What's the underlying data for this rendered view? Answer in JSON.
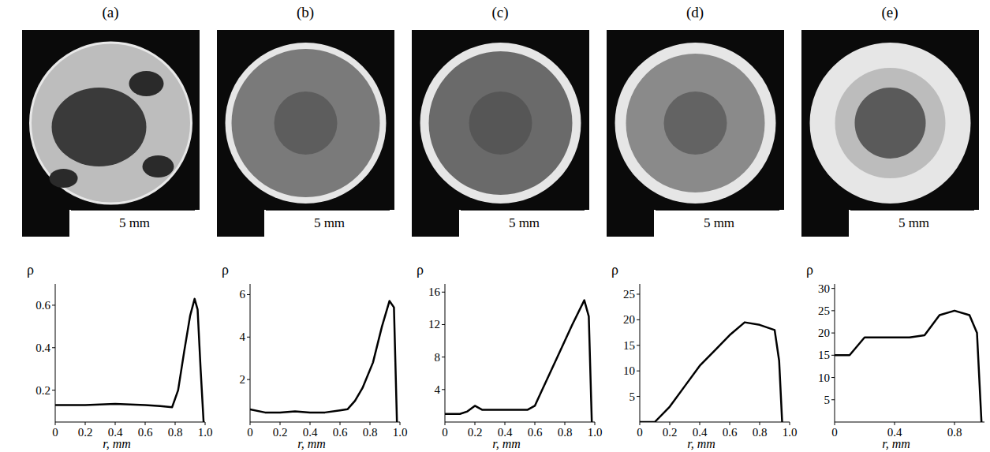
{
  "chart_data": [
    {
      "type": "line",
      "title": "(a)",
      "annotations": [
        "5 mm"
      ],
      "x_label": "r, mm",
      "y_label": "ρ",
      "color": "#000000",
      "x": [
        0,
        0.2,
        0.4,
        0.6,
        0.7,
        0.78,
        0.82,
        0.86,
        0.9,
        0.93,
        0.95,
        0.97,
        0.99
      ],
      "values": [
        0.13,
        0.13,
        0.135,
        0.13,
        0.125,
        0.12,
        0.2,
        0.38,
        0.55,
        0.63,
        0.58,
        0.3,
        0.05
      ],
      "xlim": [
        0,
        1
      ],
      "ylim": [
        0.05,
        0.7
      ],
      "xticks": [
        0,
        0.2,
        0.4,
        0.6,
        0.8,
        {
          "value": 1,
          "label": "1.0"
        }
      ],
      "yticks": [
        0.2,
        0.4,
        0.6
      ]
    },
    {
      "type": "line",
      "title": "(b)",
      "annotations": [
        "5 mm"
      ],
      "x_label": "r, mm",
      "y_label": "ρ",
      "color": "#000000",
      "x": [
        0,
        0.1,
        0.2,
        0.3,
        0.4,
        0.5,
        0.6,
        0.65,
        0.7,
        0.75,
        0.82,
        0.88,
        0.93,
        0.96,
        0.98
      ],
      "values": [
        0.6,
        0.45,
        0.45,
        0.5,
        0.45,
        0.45,
        0.55,
        0.6,
        1.0,
        1.6,
        2.8,
        4.5,
        5.7,
        5.4,
        0
      ],
      "xlim": [
        0,
        1
      ],
      "ylim": [
        0,
        6.5
      ],
      "xticks": [
        0,
        0.2,
        0.4,
        0.6,
        0.8,
        {
          "value": 1,
          "label": "1.0"
        }
      ],
      "yticks": [
        2,
        4,
        6
      ]
    },
    {
      "type": "line",
      "title": "(c)",
      "annotations": [
        "5 mm"
      ],
      "x_label": "r, mm",
      "y_label": "ρ",
      "color": "#000000",
      "x": [
        0,
        0.1,
        0.15,
        0.2,
        0.25,
        0.4,
        0.55,
        0.6,
        0.65,
        0.75,
        0.85,
        0.93,
        0.96,
        0.98
      ],
      "values": [
        1.0,
        1.0,
        1.3,
        2.0,
        1.5,
        1.5,
        1.5,
        2.0,
        4.0,
        8.0,
        12.0,
        15.0,
        13.0,
        0
      ],
      "xlim": [
        0,
        1
      ],
      "ylim": [
        0,
        17
      ],
      "xticks": [
        0,
        0.2,
        0.4,
        0.6,
        0.8,
        {
          "value": 1,
          "label": "1.0"
        }
      ],
      "yticks": [
        4,
        8,
        12,
        16
      ]
    },
    {
      "type": "line",
      "title": "(d)",
      "annotations": [
        "5 mm"
      ],
      "x_label": "r, mm",
      "y_label": "ρ",
      "color": "#000000",
      "x": [
        0,
        0.1,
        0.2,
        0.3,
        0.4,
        0.5,
        0.6,
        0.7,
        0.8,
        0.9,
        0.93,
        0.95
      ],
      "values": [
        0,
        0,
        3,
        7,
        11,
        14,
        17,
        19.5,
        19,
        18,
        12,
        0
      ],
      "xlim": [
        0,
        1
      ],
      "ylim": [
        0,
        27
      ],
      "xticks": [
        0,
        0.2,
        0.4,
        0.6,
        0.8,
        {
          "value": 1,
          "label": "1.0"
        }
      ],
      "yticks": [
        5,
        10,
        15,
        20,
        25
      ]
    },
    {
      "type": "line",
      "title": "(e)",
      "annotations": [
        "5 mm"
      ],
      "x_label": "r, mm",
      "y_label": "ρ",
      "color": "#000000",
      "x": [
        0,
        0.1,
        0.2,
        0.3,
        0.5,
        0.6,
        0.7,
        0.8,
        0.9,
        0.95,
        0.98
      ],
      "values": [
        15,
        15,
        19,
        19,
        19,
        19.5,
        24,
        25,
        24,
        20,
        0
      ],
      "xlim": [
        0,
        1
      ],
      "ylim": [
        0,
        31
      ],
      "xticks": [
        0,
        0.4,
        0.8
      ],
      "yticks": [
        5,
        10,
        15,
        20,
        25,
        30
      ]
    }
  ]
}
